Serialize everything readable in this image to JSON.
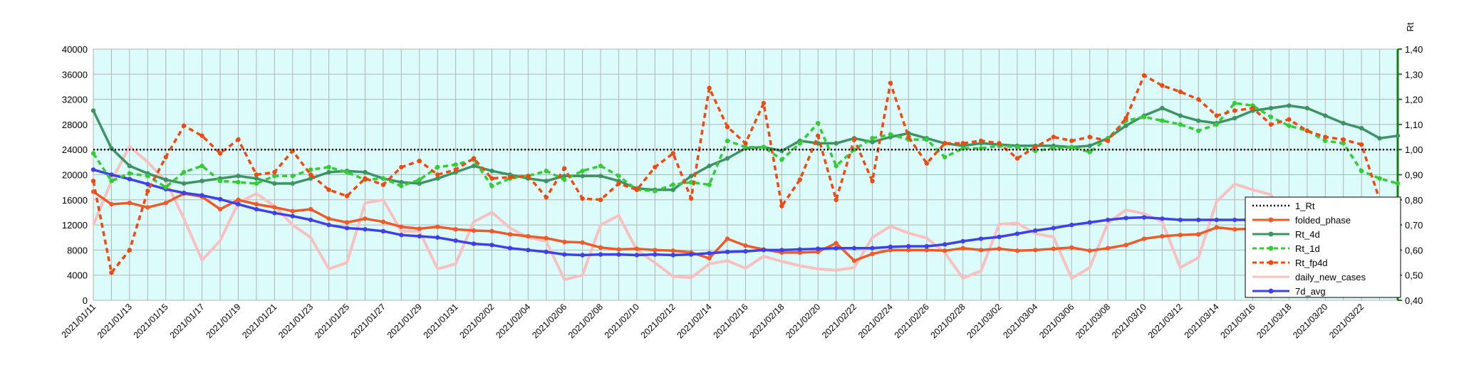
{
  "chart_data": {
    "type": "line",
    "title": "",
    "xlabel": "",
    "ylabel": "",
    "y2label": "Rt",
    "ylim": [
      0,
      40000
    ],
    "y2lim": [
      0.4,
      1.4
    ],
    "grid": true,
    "legend_position": "right",
    "plot_background": "#dcfcfc",
    "y2_axis_color": "#1a7a1a",
    "y_ticks": [
      "0",
      "4000",
      "8000",
      "12000",
      "16000",
      "20000",
      "24000",
      "28000",
      "32000",
      "36000",
      "40000"
    ],
    "y2_ticks": [
      "0,40",
      "0,50",
      "0,60",
      "0,70",
      "0,80",
      "0,90",
      "1,00",
      "1,10",
      "1,20",
      "1,30",
      "1,40"
    ],
    "x_ticks": [
      "2021/01/11",
      "2021/01/13",
      "2021/01/15",
      "2021/01/17",
      "2021/01/19",
      "2021/01/21",
      "2021/01/23",
      "2021/01/25",
      "2021/01/27",
      "2021/01/29",
      "2021/01/31",
      "2021/02/02",
      "2021/02/04",
      "2021/02/06",
      "2021/02/08",
      "2021/02/10",
      "2021/02/12",
      "2021/02/14",
      "2021/02/16",
      "2021/02/18",
      "2021/02/20",
      "2021/02/22",
      "2021/02/24",
      "2021/02/26",
      "2021/02/28",
      "2021/03/02",
      "2021/03/04",
      "2021/03/06",
      "2021/03/08",
      "2021/03/10",
      "2021/03/12",
      "2021/03/14",
      "2021/03/16",
      "2021/03/18",
      "2021/03/20",
      "2021/03/22"
    ],
    "series": [
      {
        "name": "1_Rt",
        "axis": "right",
        "color": "#000000",
        "style": "dotted",
        "marker": "none",
        "values": [
          1,
          1,
          1,
          1,
          1,
          1,
          1,
          1,
          1,
          1,
          1,
          1,
          1,
          1,
          1,
          1,
          1,
          1,
          1,
          1,
          1,
          1,
          1,
          1,
          1,
          1,
          1,
          1,
          1,
          1,
          1,
          1,
          1,
          1,
          1,
          1,
          1,
          1,
          1,
          1,
          1,
          1,
          1,
          1,
          1,
          1,
          1,
          1,
          1,
          1,
          1,
          1,
          1,
          1,
          1,
          1,
          1,
          1,
          1,
          1,
          1,
          1,
          1,
          1,
          1,
          1,
          1,
          1,
          1,
          1,
          1,
          1,
          1
        ]
      },
      {
        "name": "folded_phase",
        "axis": "left",
        "color": "#f05a28",
        "style": "solid",
        "marker": "dot",
        "values": [
          17300,
          15300,
          15500,
          14800,
          15500,
          17000,
          16500,
          14500,
          16000,
          15300,
          14800,
          14200,
          14500,
          13000,
          12400,
          13000,
          12500,
          11700,
          11400,
          11700,
          11300,
          11100,
          11000,
          10500,
          10200,
          9900,
          9300,
          9200,
          8400,
          8100,
          8200,
          8000,
          7900,
          7600,
          6700,
          9800,
          8700,
          8100,
          7600,
          7600,
          7700,
          9100,
          6300,
          7400,
          8000,
          8000,
          8000,
          7900,
          8300,
          8000,
          8200,
          7900,
          8000,
          8200,
          8400,
          7900,
          8300,
          8800,
          9800,
          10200,
          10400,
          10500,
          11600,
          11300,
          11400,
          11800,
          12100,
          12400,
          12400,
          12200,
          9700,
          9300,
          9200
        ]
      },
      {
        "name": "Rt_4d",
        "axis": "right",
        "color": "#3d9462",
        "style": "solid",
        "marker": "dot",
        "values": [
          1.155,
          1.005,
          0.935,
          0.905,
          0.88,
          0.865,
          0.875,
          0.885,
          0.895,
          0.885,
          0.865,
          0.865,
          0.885,
          0.91,
          0.915,
          0.91,
          0.885,
          0.87,
          0.865,
          0.885,
          0.91,
          0.935,
          0.915,
          0.9,
          0.885,
          0.875,
          0.895,
          0.895,
          0.895,
          0.875,
          0.845,
          0.84,
          0.84,
          0.895,
          0.935,
          0.965,
          1.005,
          1.01,
          0.995,
          1.035,
          1.025,
          1.025,
          1.045,
          1.03,
          1.05,
          1.065,
          1.045,
          1.025,
          1.015,
          1.025,
          1.02,
          1.015,
          1.015,
          1.015,
          1.01,
          1.015,
          1.045,
          1.095,
          1.135,
          1.165,
          1.135,
          1.115,
          1.105,
          1.125,
          1.155,
          1.165,
          1.175,
          1.165,
          1.135,
          1.105,
          1.085,
          1.045,
          1.055
        ]
      },
      {
        "name": "Rt_1d",
        "axis": "right",
        "color": "#33cc33",
        "style": "dashed",
        "marker": "dot",
        "values": [
          0.985,
          0.875,
          0.905,
          0.895,
          0.85,
          0.91,
          0.935,
          0.875,
          0.87,
          0.865,
          0.895,
          0.895,
          0.92,
          0.93,
          0.91,
          0.88,
          0.885,
          0.855,
          0.88,
          0.93,
          0.94,
          0.96,
          0.855,
          0.885,
          0.895,
          0.915,
          0.88,
          0.915,
          0.935,
          0.895,
          0.84,
          0.835,
          0.86,
          0.87,
          0.86,
          1.035,
          1.01,
          1.01,
          0.96,
          1.025,
          1.105,
          0.935,
          1.0,
          1.045,
          1.06,
          1.04,
          1.04,
          0.97,
          1.005,
          1.005,
          1.015,
          1.01,
          0.995,
          1.005,
          1.01,
          0.99,
          1.045,
          1.115,
          1.13,
          1.115,
          1.1,
          1.075,
          1.1,
          1.185,
          1.175,
          1.13,
          1.095,
          1.075,
          1.035,
          1.025,
          0.915,
          0.885,
          0.865
        ]
      },
      {
        "name": "Rt_fp4d",
        "axis": "right",
        "color": "#f04a10",
        "style": "dashed",
        "marker": "dot",
        "values": [
          0.875,
          0.51,
          0.6,
          0.835,
          0.97,
          1.095,
          1.055,
          0.985,
          1.04,
          0.9,
          0.91,
          0.995,
          0.9,
          0.84,
          0.815,
          0.885,
          0.86,
          0.93,
          0.955,
          0.9,
          0.92,
          0.965,
          0.885,
          0.89,
          0.895,
          0.81,
          0.925,
          0.805,
          0.8,
          0.865,
          0.84,
          0.93,
          0.985,
          0.805,
          1.245,
          1.09,
          1.025,
          1.185,
          0.775,
          0.88,
          1.055,
          0.8,
          1.04,
          0.875,
          1.265,
          1.05,
          0.945,
          1.025,
          1.025,
          1.035,
          1.025,
          0.965,
          1.01,
          1.05,
          1.035,
          1.05,
          1.035,
          1.125,
          1.295,
          1.255,
          1.23,
          1.2,
          1.135,
          1.155,
          1.165,
          1.1,
          1.12,
          1.075,
          1.05,
          1.04,
          1.02,
          0.8,
          0.8
        ]
      },
      {
        "name": "daily_new_cases",
        "axis": "left",
        "color": "#f9c0c0",
        "style": "solid",
        "marker": "none",
        "values": [
          12000,
          19000,
          24500,
          22000,
          19000,
          13000,
          6400,
          9500,
          15500,
          17000,
          15000,
          12000,
          10000,
          5000,
          6000,
          15500,
          16000,
          11000,
          11000,
          5000,
          5800,
          12500,
          14000,
          11500,
          10000,
          9400,
          3300,
          4000,
          12000,
          13500,
          8000,
          6000,
          3800,
          3600,
          5800,
          6300,
          5100,
          7000,
          6200,
          5500,
          5000,
          4800,
          5200,
          10000,
          11800,
          10700,
          9900,
          7600,
          3500,
          4700,
          12100,
          12300,
          10600,
          10100,
          3500,
          5200,
          12300,
          14400,
          13800,
          12500,
          5200,
          6800,
          15700,
          18500,
          17600,
          16800,
          11600,
          5800,
          7500,
          9300,
          9500,
          9300,
          9300
        ]
      },
      {
        "name": "7d_avg",
        "axis": "left",
        "color": "#4040e8",
        "style": "solid",
        "marker": "dot",
        "values": [
          20800,
          20000,
          19300,
          18500,
          17700,
          17100,
          16700,
          16100,
          15300,
          14500,
          13900,
          13400,
          12800,
          12000,
          11500,
          11300,
          11000,
          10400,
          10200,
          10000,
          9500,
          9000,
          8800,
          8300,
          8000,
          7700,
          7300,
          7200,
          7300,
          7300,
          7200,
          7300,
          7200,
          7300,
          7500,
          7700,
          7800,
          8000,
          8000,
          8100,
          8200,
          8300,
          8300,
          8300,
          8500,
          8600,
          8600,
          8900,
          9400,
          9800,
          10100,
          10600,
          11100,
          11500,
          12000,
          12400,
          12800,
          13100,
          13200,
          13000,
          12800,
          12800,
          12800,
          12800,
          12800,
          12800,
          12800,
          12800,
          12800,
          12800,
          12800,
          12800,
          12800
        ]
      }
    ]
  }
}
